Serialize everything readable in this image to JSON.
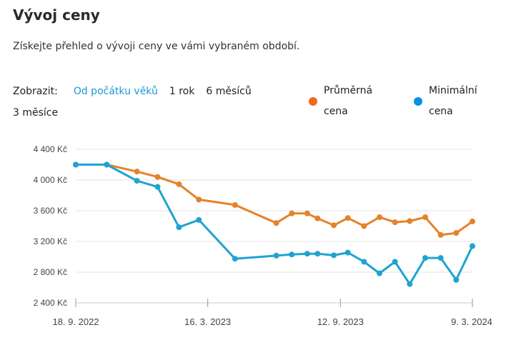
{
  "header": {
    "title": "Vývoj ceny",
    "subtitle": "Získejte přehled o vývoji ceny ve vámi vybraném období."
  },
  "filters": {
    "label": "Zobrazit:",
    "options": [
      "Od počátku věků",
      "1 rok",
      "6 měsíců",
      "3 měsíce"
    ],
    "active": 0
  },
  "legend": [
    {
      "line1": "Průměrná",
      "line2": "cena",
      "color": "#f06a1a"
    },
    {
      "line1": "Minimální",
      "line2": "cena",
      "color": "#0a8fe8"
    }
  ],
  "chart_data": {
    "type": "line",
    "title": "Vývoj ceny",
    "xlabel": "",
    "ylabel": "",
    "ylim": [
      2400,
      4400
    ],
    "yticks": [
      2400,
      2800,
      3200,
      3600,
      4000,
      4400
    ],
    "ytick_labels": [
      "2 400 Kč",
      "2 800 Kč",
      "3 200 Kč",
      "3 600 Kč",
      "4 000 Kč",
      "4 400 Kč"
    ],
    "xlim": [
      "2022-09-18",
      "2024-03-09"
    ],
    "xticks": [
      "2022-09-18",
      "2023-03-16",
      "2023-09-12",
      "2024-03-09"
    ],
    "xtick_labels": [
      "18. 9. 2022",
      "16. 3. 2023",
      "12. 9. 2023",
      "9. 3. 2024"
    ],
    "grid": true,
    "legend_position": "top-right",
    "x": [
      "2022-09-18",
      "2022-10-30",
      "2022-12-10",
      "2023-01-07",
      "2023-02-05",
      "2023-03-04",
      "2023-04-22",
      "2023-06-17",
      "2023-07-08",
      "2023-07-29",
      "2023-08-12",
      "2023-09-03",
      "2023-09-22",
      "2023-10-14",
      "2023-11-04",
      "2023-11-25",
      "2023-12-15",
      "2024-01-05",
      "2024-01-26",
      "2024-02-16",
      "2024-03-09"
    ],
    "series": [
      {
        "name": "Průměrná cena",
        "color": "#e5822a",
        "values": [
          4200,
          4200,
          4110,
          4040,
          3945,
          3745,
          3675,
          3440,
          3565,
          3565,
          3500,
          3410,
          3505,
          3400,
          3515,
          3450,
          3465,
          3515,
          3285,
          3310,
          3460
        ]
      },
      {
        "name": "Minimální cena",
        "color": "#1fa3d1",
        "values": [
          4200,
          4200,
          3990,
          3910,
          3385,
          3480,
          2975,
          3015,
          3030,
          3040,
          3040,
          3020,
          3055,
          2935,
          2785,
          2935,
          2645,
          2985,
          2985,
          2700,
          3140
        ]
      }
    ]
  }
}
